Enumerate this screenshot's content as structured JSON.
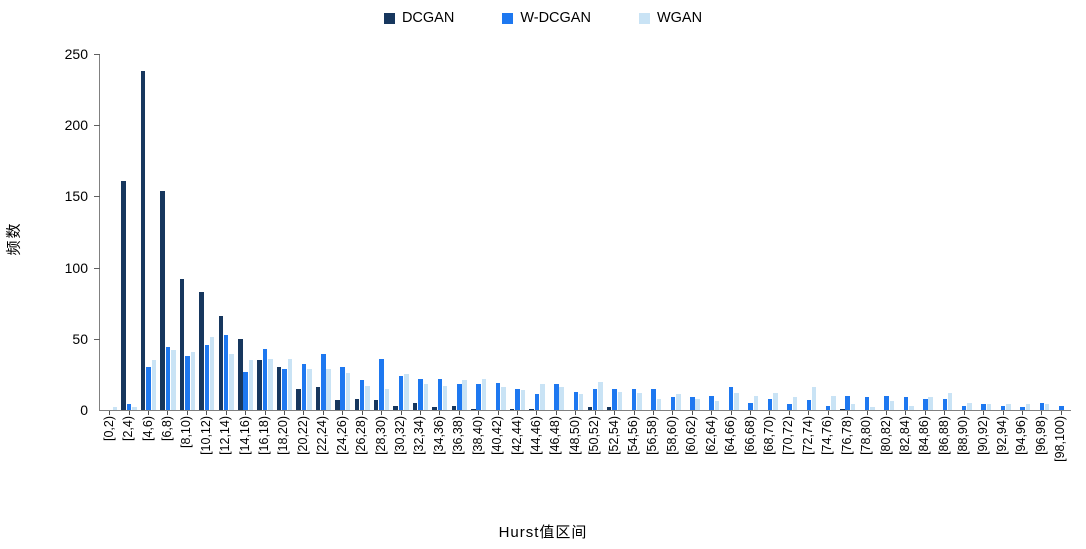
{
  "legend": [
    {
      "label": "DCGAN",
      "color": "#17375E"
    },
    {
      "label": "W-DCGAN",
      "color": "#1E78F0"
    },
    {
      "label": "WGAN",
      "color": "#C9E3F5"
    }
  ],
  "y_axis": {
    "label": "频数",
    "ticks": [
      0,
      50,
      100,
      150,
      200,
      250
    ],
    "max": 250
  },
  "x_axis": {
    "label": "Hurst值区间"
  },
  "chart_data": {
    "type": "bar",
    "title": "",
    "xlabel": "Hurst值区间",
    "ylabel": "频数",
    "ylim": [
      0,
      250
    ],
    "grid": false,
    "legend_position": "top",
    "categories": [
      "[0,2)",
      "[2,4)",
      "[4,6)",
      "[6,8)",
      "[8,10)",
      "[10,12)",
      "[12,14)",
      "[14,16)",
      "[16,18)",
      "[18,20)",
      "[20,22)",
      "[22,24)",
      "[24,26)",
      "[26,28)",
      "[28,30)",
      "[30,32)",
      "[32,34)",
      "[34,36)",
      "[36,38)",
      "[38,40)",
      "[40,42)",
      "[42,44)",
      "[44,46)",
      "[46,48)",
      "[48,50)",
      "[50,52)",
      "[52,54)",
      "[54,56)",
      "[56,58)",
      "[58,60)",
      "[60,62)",
      "[62,64)",
      "[64,66)",
      "[66,68)",
      "[68,70)",
      "[70,72)",
      "[72,74)",
      "[74,76)",
      "[76,78)",
      "[78,80)",
      "[80,82)",
      "[82,84)",
      "[84,86)",
      "[86,88)",
      "[88,90)",
      "[90,92)",
      "[92,94)",
      "[94,96)",
      "[96,98)",
      "[98,100)"
    ],
    "series": [
      {
        "name": "DCGAN",
        "color": "#17375E",
        "values": [
          0,
          161,
          238,
          154,
          92,
          83,
          66,
          50,
          35,
          30,
          15,
          16,
          7,
          8,
          7,
          3,
          5,
          2,
          3,
          1,
          0,
          1,
          1,
          0,
          0,
          2,
          2,
          0,
          0,
          0,
          0,
          0,
          0,
          0,
          0,
          0,
          0,
          0,
          1,
          0,
          0,
          0,
          0,
          0,
          0,
          0,
          0,
          0,
          0,
          0
        ]
      },
      {
        "name": "W-DCGAN",
        "color": "#1E78F0",
        "values": [
          0,
          4,
          30,
          44,
          38,
          46,
          53,
          27,
          43,
          29,
          32,
          39,
          30,
          21,
          36,
          24,
          22,
          22,
          18,
          18,
          19,
          15,
          11,
          18,
          13,
          15,
          15,
          15,
          15,
          9,
          9,
          10,
          16,
          5,
          8,
          4,
          7,
          3,
          10,
          9,
          10,
          9,
          8,
          8,
          3,
          4,
          3,
          2,
          5,
          3
        ]
      },
      {
        "name": "WGAN",
        "color": "#C9E3F5",
        "values": [
          2,
          2,
          35,
          42,
          41,
          51,
          39,
          35,
          36,
          36,
          29,
          29,
          26,
          17,
          15,
          25,
          18,
          17,
          21,
          22,
          16,
          14,
          18,
          16,
          11,
          20,
          13,
          12,
          8,
          11,
          8,
          6,
          12,
          10,
          12,
          9,
          16,
          10,
          4,
          2,
          6,
          3,
          9,
          12,
          5,
          4,
          4,
          4,
          4,
          0
        ]
      }
    ]
  }
}
